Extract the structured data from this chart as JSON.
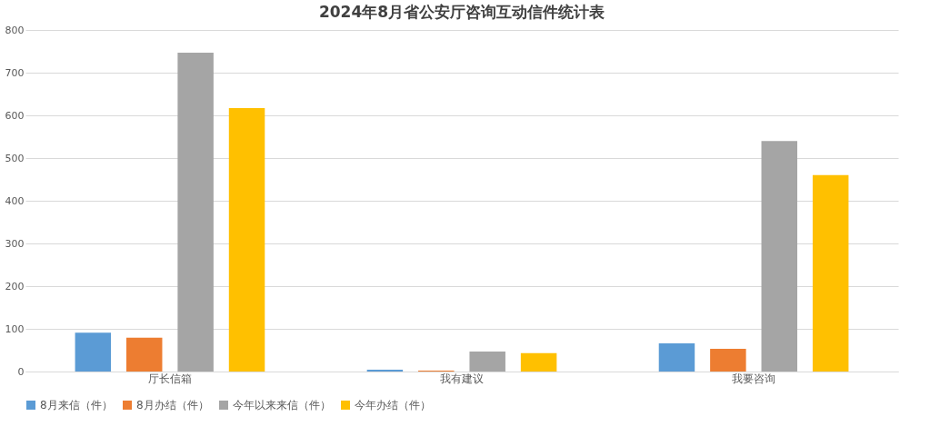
{
  "chart_data": {
    "type": "bar",
    "title": "2024年8月省公安厅咨询互动信件统计表",
    "categories": [
      "厅长信箱",
      "我有建议",
      "我要咨询"
    ],
    "series": [
      {
        "name": "8月来信（件）",
        "color": "#5b9bd5",
        "values": [
          91,
          4,
          66
        ]
      },
      {
        "name": "8月办结（件）",
        "color": "#ed7d31",
        "values": [
          79,
          2,
          53
        ]
      },
      {
        "name": "今年以来来信（件）",
        "color": "#a5a5a5",
        "values": [
          747,
          47,
          540
        ]
      },
      {
        "name": "今年办结（件）",
        "color": "#ffc000",
        "values": [
          617,
          43,
          460
        ]
      }
    ],
    "ylim": [
      0,
      800
    ],
    "yticks": [
      0,
      100,
      200,
      300,
      400,
      500,
      600,
      700,
      800
    ],
    "grid": "y",
    "legend": "bottom"
  }
}
